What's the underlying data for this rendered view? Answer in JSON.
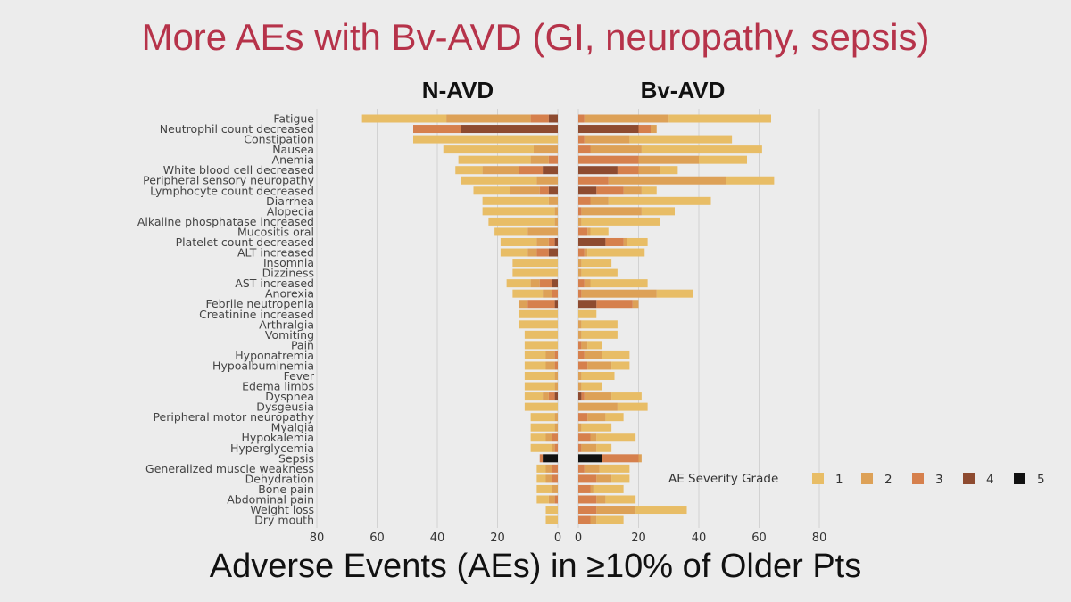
{
  "slide": {
    "title": "More AEs with Bv-AVD (GI, neuropathy, sepsis)",
    "footer": "Adverse Events (AEs) in ≥10% of Older Pts"
  },
  "chart_data": {
    "type": "bar",
    "subtype": "stacked horizontal butterfly",
    "panels": [
      "N-AVD",
      "Bv-AVD"
    ],
    "legend": {
      "title": "AE Severity Grade",
      "entries": [
        "1",
        "2",
        "3",
        "4",
        "5"
      ],
      "colors": [
        "#e8bd66",
        "#dda157",
        "#d6804d",
        "#8e4b30",
        "#111111"
      ],
      "placement": "bottom-right"
    },
    "xlim": [
      0,
      80
    ],
    "xticks": [
      0,
      20,
      40,
      60,
      80
    ],
    "tick_labels": [
      "0",
      "20",
      "40",
      "60",
      "80"
    ],
    "categories": [
      "Fatigue",
      "Neutrophil count decreased",
      "Constipation",
      "Nausea",
      "Anemia",
      "White blood cell decreased",
      "Peripheral sensory neuropathy",
      "Lymphocyte count decreased",
      "Diarrhea",
      "Alopecia",
      "Alkaline phosphatase increased",
      "Mucositis oral",
      "Platelet count decreased",
      "ALT increased",
      "Insomnia",
      "Dizziness",
      "AST increased",
      "Anorexia",
      "Febrile neutropenia",
      "Creatinine increased",
      "Arthralgia",
      "Vomiting",
      "Pain",
      "Hyponatremia",
      "Hypoalbuminemia",
      "Fever",
      "Edema limbs",
      "Dyspnea",
      "Dysgeusia",
      "Peripheral motor neuropathy",
      "Myalgia",
      "Hypokalemia",
      "Hyperglycemia",
      "Sepsis",
      "Generalized muscle weakness",
      "Dehydration",
      "Bone pain",
      "Abdominal pain",
      "Weight loss",
      "Dry mouth"
    ],
    "series": [
      {
        "name": "N-AVD",
        "values": [
          [
            28,
            28,
            6,
            3,
            0
          ],
          [
            0,
            0,
            16,
            32,
            0
          ],
          [
            48,
            0,
            0,
            0,
            0
          ],
          [
            30,
            8,
            0,
            0,
            0
          ],
          [
            24,
            6,
            3,
            0,
            0
          ],
          [
            9,
            12,
            8,
            5,
            0
          ],
          [
            25,
            7,
            0,
            0,
            0
          ],
          [
            12,
            10,
            3,
            3,
            0
          ],
          [
            22,
            3,
            0,
            0,
            0
          ],
          [
            24,
            1,
            0,
            0,
            0
          ],
          [
            22,
            1,
            0,
            0,
            0
          ],
          [
            11,
            10,
            0,
            0,
            0
          ],
          [
            12,
            4,
            2,
            1,
            0
          ],
          [
            9,
            3,
            4,
            3,
            0
          ],
          [
            15,
            0,
            0,
            0,
            0
          ],
          [
            15,
            0,
            0,
            0,
            0
          ],
          [
            8,
            3,
            4,
            2,
            0
          ],
          [
            10,
            3,
            2,
            0,
            0
          ],
          [
            0,
            3,
            9,
            1,
            0
          ],
          [
            13,
            0,
            0,
            0,
            0
          ],
          [
            13,
            0,
            0,
            0,
            0
          ],
          [
            11,
            0,
            0,
            0,
            0
          ],
          [
            11,
            0,
            0,
            0,
            0
          ],
          [
            7,
            3,
            1,
            0,
            0
          ],
          [
            7,
            3,
            1,
            0,
            0
          ],
          [
            10,
            1,
            0,
            0,
            0
          ],
          [
            10,
            1,
            0,
            0,
            0
          ],
          [
            6,
            2,
            2,
            1,
            0
          ],
          [
            11,
            0,
            0,
            0,
            0
          ],
          [
            8,
            1,
            0,
            0,
            0
          ],
          [
            8,
            1,
            0,
            0,
            0
          ],
          [
            5,
            2,
            2,
            0,
            0
          ],
          [
            7,
            1,
            1,
            0,
            0
          ],
          [
            0,
            0,
            1,
            0,
            5
          ],
          [
            3,
            2,
            2,
            0,
            0
          ],
          [
            3,
            2,
            2,
            0,
            0
          ],
          [
            5,
            2,
            0,
            0,
            0
          ],
          [
            4,
            2,
            1,
            0,
            0
          ],
          [
            4,
            0,
            0,
            0,
            0
          ],
          [
            4,
            0,
            0,
            0,
            0
          ]
        ]
      },
      {
        "name": "Bv-AVD",
        "values": [
          [
            34,
            28,
            2,
            0,
            0
          ],
          [
            0,
            2,
            4,
            20,
            0
          ],
          [
            34,
            15,
            2,
            0,
            0
          ],
          [
            40,
            17,
            4,
            0,
            0
          ],
          [
            16,
            20,
            20,
            0,
            0
          ],
          [
            6,
            7,
            7,
            13,
            0
          ],
          [
            16,
            39,
            10,
            0,
            0
          ],
          [
            5,
            6,
            9,
            6,
            0
          ],
          [
            34,
            6,
            4,
            0,
            0
          ],
          [
            11,
            20,
            1,
            0,
            0
          ],
          [
            26,
            1,
            0,
            0,
            0
          ],
          [
            6,
            1,
            3,
            0,
            0
          ],
          [
            7,
            1,
            6,
            9,
            0
          ],
          [
            19,
            1,
            2,
            0,
            0
          ],
          [
            10,
            1,
            0,
            0,
            0
          ],
          [
            12,
            1,
            0,
            0,
            0
          ],
          [
            19,
            2,
            2,
            0,
            0
          ],
          [
            12,
            25,
            1,
            0,
            0
          ],
          [
            0,
            2,
            12,
            6,
            0
          ],
          [
            6,
            0,
            0,
            0,
            0
          ],
          [
            12,
            1,
            0,
            0,
            0
          ],
          [
            12,
            1,
            0,
            0,
            0
          ],
          [
            5,
            2,
            1,
            0,
            0
          ],
          [
            9,
            6,
            2,
            0,
            0
          ],
          [
            6,
            8,
            3,
            0,
            0
          ],
          [
            11,
            1,
            0,
            0,
            0
          ],
          [
            7,
            1,
            0,
            0,
            0
          ],
          [
            10,
            9,
            1,
            1,
            0
          ],
          [
            10,
            13,
            0,
            0,
            0
          ],
          [
            6,
            6,
            3,
            0,
            0
          ],
          [
            10,
            1,
            0,
            0,
            0
          ],
          [
            13,
            2,
            4,
            0,
            0
          ],
          [
            5,
            5,
            1,
            0,
            0
          ],
          [
            0,
            1,
            12,
            0,
            8
          ],
          [
            10,
            5,
            2,
            0,
            0
          ],
          [
            6,
            5,
            6,
            0,
            0
          ],
          [
            10,
            1,
            4,
            0,
            0
          ],
          [
            10,
            3,
            6,
            0,
            0
          ],
          [
            17,
            13,
            6,
            0,
            0
          ],
          [
            9,
            2,
            4,
            0,
            0
          ]
        ]
      }
    ]
  }
}
